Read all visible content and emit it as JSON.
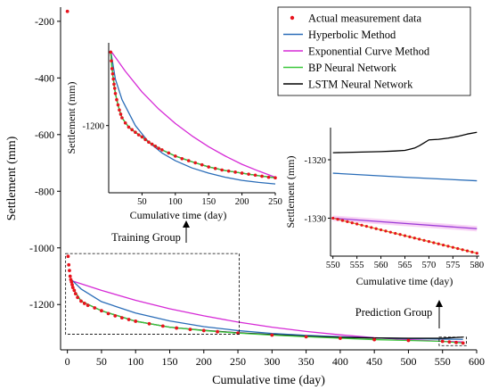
{
  "chart_data": [
    {
      "id": "main",
      "type": "line",
      "xlabel": "Cumulative time (day)",
      "ylabel": "Settlement (mm)",
      "xlim": [
        -10,
        600
      ],
      "ylim": [
        -1360,
        -150
      ],
      "xticks": [
        0,
        50,
        100,
        150,
        200,
        250,
        300,
        350,
        400,
        450,
        500,
        550,
        600
      ],
      "yticks": [
        -1200,
        -1000,
        -800,
        -600,
        -400,
        -200
      ],
      "legend": {
        "placement": "top-right",
        "entries": [
          {
            "label": "Actual measurement data",
            "color": "#e8141e",
            "marker": "dot"
          },
          {
            "label": "Hyperbolic Method",
            "color": "#2a6db8",
            "marker": "line"
          },
          {
            "label": "Exponential Curve Method",
            "color": "#d62ad6",
            "marker": "line"
          },
          {
            "label": "BP Neural Network",
            "color": "#3cc83c",
            "marker": "line"
          },
          {
            "label": "LSTM Neural Network",
            "color": "#000000",
            "marker": "line"
          }
        ]
      },
      "series": [
        {
          "name": "Actual measurement data",
          "color": "#e8141e",
          "kind": "scatter",
          "x": [
            0,
            1,
            2,
            3,
            4,
            5,
            6,
            7,
            8,
            10,
            12,
            15,
            20,
            25,
            30,
            40,
            50,
            60,
            70,
            80,
            90,
            100,
            120,
            140,
            160,
            180,
            200,
            220,
            250,
            300,
            350,
            400,
            450,
            500,
            550,
            560,
            570,
            580
          ],
          "y": [
            -165,
            -1030,
            -1060,
            -1080,
            -1100,
            -1112,
            -1120,
            -1130,
            -1140,
            -1150,
            -1162,
            -1175,
            -1188,
            -1196,
            -1203,
            -1212,
            -1222,
            -1232,
            -1240,
            -1247,
            -1253,
            -1259,
            -1268,
            -1276,
            -1283,
            -1288,
            -1292,
            -1296,
            -1301,
            -1308,
            -1314,
            -1319,
            -1324,
            -1327,
            -1330,
            -1332,
            -1334,
            -1336
          ]
        },
        {
          "name": "Hyperbolic Method",
          "color": "#2a6db8",
          "kind": "line",
          "x": [
            5,
            20,
            50,
            100,
            150,
            200,
            250,
            300,
            350,
            400,
            450,
            500,
            550,
            580
          ],
          "y": [
            -1110,
            -1145,
            -1190,
            -1230,
            -1258,
            -1278,
            -1292,
            -1302,
            -1309,
            -1314,
            -1318,
            -1320,
            -1322,
            -1323
          ]
        },
        {
          "name": "Exponential Curve Method",
          "color": "#d62ad6",
          "kind": "line",
          "x": [
            5,
            50,
            100,
            150,
            200,
            250,
            300,
            350,
            400,
            450,
            500,
            550,
            580
          ],
          "y": [
            -1115,
            -1150,
            -1185,
            -1215,
            -1240,
            -1262,
            -1280,
            -1295,
            -1307,
            -1317,
            -1324,
            -1330,
            -1332
          ]
        },
        {
          "name": "BP Neural Network",
          "color": "#3cc83c",
          "kind": "line",
          "x": [
            5,
            10,
            20,
            50,
            100,
            150,
            200,
            250,
            300,
            350,
            400,
            450,
            500,
            550,
            580
          ],
          "y": [
            -1112,
            -1150,
            -1188,
            -1222,
            -1259,
            -1280,
            -1292,
            -1301,
            -1308,
            -1314,
            -1319,
            -1324,
            -1327,
            -1330,
            -1336
          ]
        },
        {
          "name": "LSTM Neural Network",
          "color": "#000000",
          "kind": "line",
          "x": [
            5,
            10,
            20,
            50,
            100,
            150,
            200,
            250,
            300,
            350,
            400,
            450,
            500,
            550,
            580
          ],
          "y": [
            -1112,
            -1150,
            -1188,
            -1222,
            -1259,
            -1280,
            -1291,
            -1300,
            -1306,
            -1312,
            -1316,
            -1318,
            -1319,
            -1319,
            -1315
          ]
        }
      ],
      "annotations": {
        "training_label": "Training Group",
        "prediction_label": "Prediction Group",
        "training_box": {
          "x": [
            0,
            252
          ],
          "y": [
            -1305,
            -1020
          ]
        },
        "prediction_box": {
          "x": [
            545,
            585
          ],
          "y": [
            -1345,
            -1315
          ]
        }
      }
    },
    {
      "id": "inset-training",
      "type": "line",
      "xlabel": "Cumulative time (day)",
      "ylabel": "Settlement (mm)",
      "xlim": [
        0,
        250
      ],
      "ylim": [
        -1330,
        -1040
      ],
      "xticks": [
        50,
        100,
        150,
        200,
        250
      ],
      "yticks": [
        -1200
      ],
      "series": [
        {
          "name": "Actual measurement data",
          "color": "#e8141e",
          "kind": "scatter",
          "x": [
            3,
            4,
            5,
            6,
            7,
            8,
            9,
            10,
            12,
            14,
            16,
            18,
            20,
            25,
            30,
            35,
            40,
            45,
            50,
            55,
            60,
            65,
            70,
            75,
            80,
            90,
            100,
            110,
            120,
            130,
            140,
            150,
            160,
            170,
            180,
            190,
            200,
            210,
            220,
            230,
            240,
            250
          ],
          "y": [
            -1058,
            -1075,
            -1090,
            -1100,
            -1110,
            -1120,
            -1128,
            -1138,
            -1150,
            -1160,
            -1170,
            -1178,
            -1185,
            -1195,
            -1203,
            -1208,
            -1213,
            -1218,
            -1222,
            -1227,
            -1232,
            -1236,
            -1240,
            -1244,
            -1247,
            -1253,
            -1259,
            -1264,
            -1268,
            -1272,
            -1276,
            -1280,
            -1283,
            -1286,
            -1288,
            -1290,
            -1292,
            -1294,
            -1296,
            -1298,
            -1300,
            -1301
          ]
        },
        {
          "name": "Hyperbolic Method",
          "color": "#2a6db8",
          "kind": "line",
          "x": [
            3,
            10,
            20,
            40,
            60,
            80,
            100,
            125,
            150,
            175,
            200,
            225,
            250
          ],
          "y": [
            -1055,
            -1110,
            -1150,
            -1200,
            -1232,
            -1253,
            -1268,
            -1282,
            -1292,
            -1300,
            -1306,
            -1310,
            -1313
          ]
        },
        {
          "name": "Exponential Curve Method",
          "color": "#d62ad6",
          "kind": "line",
          "x": [
            3,
            25,
            50,
            75,
            100,
            125,
            150,
            175,
            200,
            225,
            250
          ],
          "y": [
            -1055,
            -1095,
            -1135,
            -1168,
            -1196,
            -1220,
            -1241,
            -1259,
            -1275,
            -1288,
            -1300
          ]
        },
        {
          "name": "BP Neural Network",
          "color": "#3cc83c",
          "kind": "line",
          "x": [
            3,
            5,
            8,
            10,
            14,
            18,
            20,
            30,
            40,
            50,
            60,
            80,
            100,
            125,
            150,
            175,
            200,
            225,
            250
          ],
          "y": [
            -1058,
            -1090,
            -1120,
            -1138,
            -1160,
            -1178,
            -1185,
            -1203,
            -1213,
            -1222,
            -1232,
            -1247,
            -1259,
            -1270,
            -1280,
            -1287,
            -1292,
            -1297,
            -1301
          ]
        },
        {
          "name": "LSTM Neural Network",
          "color": "#000000",
          "kind": "line",
          "x": [
            3,
            5,
            8,
            10,
            14,
            18,
            20,
            30,
            40,
            50,
            60,
            80,
            100,
            125,
            150,
            175,
            200,
            225,
            250
          ],
          "y": [
            -1058,
            -1090,
            -1120,
            -1138,
            -1160,
            -1178,
            -1185,
            -1203,
            -1213,
            -1222,
            -1232,
            -1247,
            -1259,
            -1270,
            -1280,
            -1287,
            -1292,
            -1297,
            -1301
          ]
        }
      ]
    },
    {
      "id": "inset-prediction",
      "type": "line",
      "xlabel": "Cumulative time (day)",
      "ylabel": "Settlement (mm)",
      "xlim": [
        549.5,
        580.5
      ],
      "ylim": [
        -1336.5,
        -1314.5
      ],
      "xticks": [
        550,
        555,
        560,
        565,
        570,
        575,
        580
      ],
      "yticks": [
        -1330,
        -1320
      ],
      "series": [
        {
          "name": "Actual measurement data",
          "color": "#e8141e",
          "kind": "scatter",
          "x": [
            550,
            551,
            552,
            553,
            554,
            555,
            556,
            557,
            558,
            559,
            560,
            561,
            562,
            563,
            564,
            565,
            566,
            567,
            568,
            569,
            570,
            571,
            572,
            573,
            574,
            575,
            576,
            577,
            578,
            579,
            580
          ],
          "y": [
            -1330.0,
            -1330.2,
            -1330.4,
            -1330.6,
            -1330.8,
            -1331.0,
            -1331.2,
            -1331.4,
            -1331.6,
            -1331.8,
            -1332.0,
            -1332.2,
            -1332.4,
            -1332.6,
            -1332.8,
            -1333.0,
            -1333.2,
            -1333.4,
            -1333.6,
            -1333.8,
            -1334.0,
            -1334.2,
            -1334.4,
            -1334.6,
            -1334.8,
            -1335.0,
            -1335.2,
            -1335.4,
            -1335.6,
            -1335.8,
            -1336.0
          ]
        },
        {
          "name": "Hyperbolic Method",
          "color": "#2a6db8",
          "kind": "line",
          "x": [
            550,
            565,
            580
          ],
          "y": [
            -1322.3,
            -1323.0,
            -1323.6
          ]
        },
        {
          "name": "Exponential Curve Method",
          "color": "#9b3ad6",
          "kind": "line",
          "x": [
            550,
            565,
            580
          ],
          "y": [
            -1330.0,
            -1330.9,
            -1331.8
          ]
        },
        {
          "name": "BP Neural Network",
          "color": "#d89a2a",
          "kind": "line",
          "x": [
            550,
            565,
            580
          ],
          "y": [
            -1330.0,
            -1333.0,
            -1336.0
          ]
        },
        {
          "name": "LSTM Neural Network",
          "color": "#000000",
          "kind": "line",
          "x": [
            550,
            555,
            560,
            563,
            565,
            566,
            567,
            568,
            569,
            570,
            572,
            574,
            576,
            578,
            580
          ],
          "y": [
            -1318.8,
            -1318.7,
            -1318.6,
            -1318.5,
            -1318.4,
            -1318.2,
            -1318.0,
            -1317.6,
            -1317.1,
            -1316.6,
            -1316.5,
            -1316.3,
            -1316.0,
            -1315.6,
            -1315.3
          ]
        }
      ]
    }
  ]
}
